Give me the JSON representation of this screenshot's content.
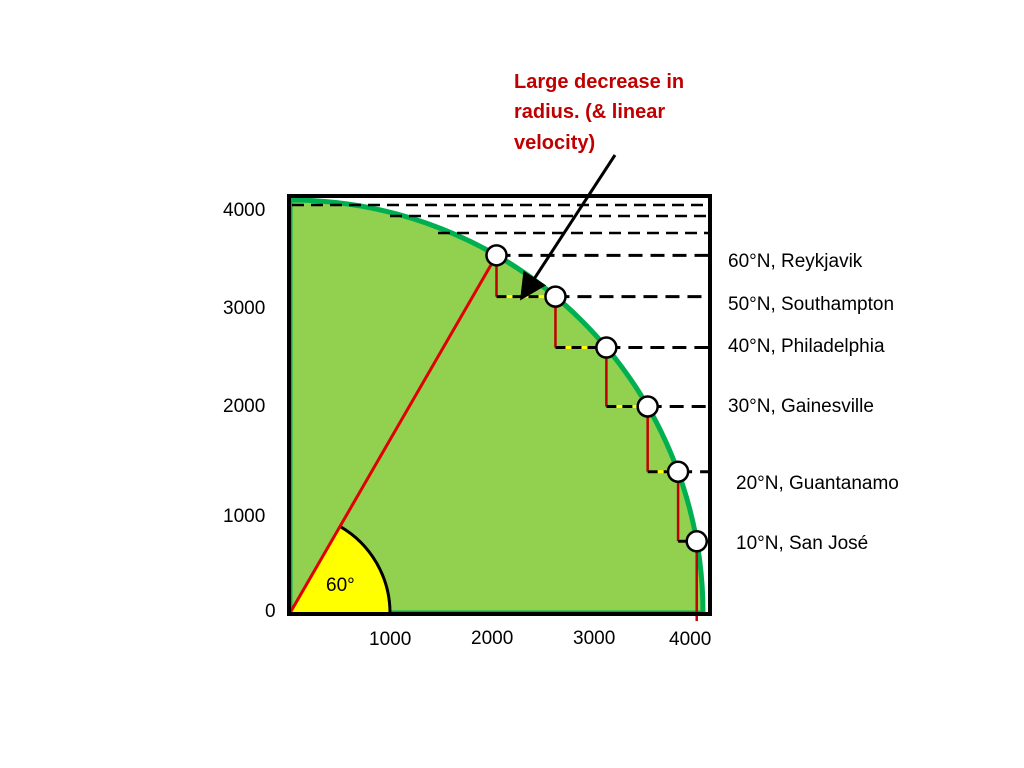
{
  "annotation": {
    "lines": [
      "Large decrease in",
      "radius. (& linear",
      "velocity)"
    ],
    "color": "#c00000"
  },
  "axes": {
    "y_ticks": [
      "4000",
      "3000",
      "2000",
      "1000",
      "0"
    ],
    "x_ticks": [
      "1000",
      "2000",
      "3000",
      "4000"
    ]
  },
  "angle_label": "60°",
  "colors": {
    "land": "#92d050",
    "arc": "#00b050",
    "wedge": "#ffff00",
    "radius_line": "#e00000",
    "drop_line": "#c00000",
    "step_highlight": "#ffff00"
  },
  "earth_radius": 4000,
  "latitudes": [
    {
      "lat": 60,
      "label": "60°N, Reykjavik"
    },
    {
      "lat": 50,
      "label": "50°N, Southampton"
    },
    {
      "lat": 40,
      "label": "40°N, Philadelphia"
    },
    {
      "lat": 30,
      "label": "30°N, Gainesville"
    },
    {
      "lat": 20,
      "label": "20°N, Guantanamo"
    },
    {
      "lat": 10,
      "label": "10°N, San José"
    }
  ]
}
